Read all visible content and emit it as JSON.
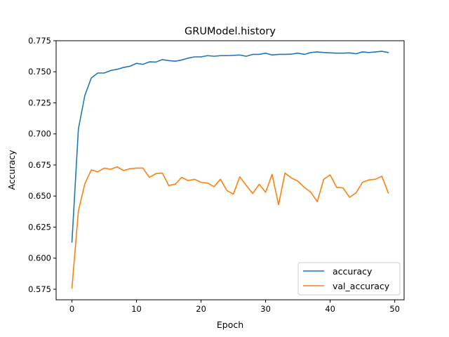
{
  "chart_data": {
    "type": "line",
    "title": "GRUModel.history",
    "xlabel": "Epoch",
    "ylabel": "Accuracy",
    "xlim": [
      -2.45,
      51.45
    ],
    "ylim": [
      0.5665,
      0.775
    ],
    "xticks": [
      0,
      10,
      20,
      30,
      40,
      50
    ],
    "xtick_labels": [
      "0",
      "10",
      "20",
      "30",
      "40",
      "50"
    ],
    "yticks": [
      0.575,
      0.6,
      0.625,
      0.65,
      0.675,
      0.7,
      0.725,
      0.75,
      0.775
    ],
    "ytick_labels": [
      "0.575",
      "0.600",
      "0.625",
      "0.650",
      "0.675",
      "0.700",
      "0.725",
      "0.750",
      "0.775"
    ],
    "grid": false,
    "legend_position": "lower right",
    "x": [
      0,
      1,
      2,
      3,
      4,
      5,
      6,
      7,
      8,
      9,
      10,
      11,
      12,
      13,
      14,
      15,
      16,
      17,
      18,
      19,
      20,
      21,
      22,
      23,
      24,
      25,
      26,
      27,
      28,
      29,
      30,
      31,
      32,
      33,
      34,
      35,
      36,
      37,
      38,
      39,
      40,
      41,
      42,
      43,
      44,
      45,
      46,
      47,
      48,
      49
    ],
    "series": [
      {
        "name": "accuracy",
        "color": "#1f77b4",
        "values": [
          0.613,
          0.704,
          0.731,
          0.745,
          0.749,
          0.749,
          0.751,
          0.752,
          0.7535,
          0.7545,
          0.7568,
          0.756,
          0.758,
          0.7578,
          0.7598,
          0.759,
          0.7585,
          0.7595,
          0.761,
          0.762,
          0.762,
          0.763,
          0.7625,
          0.763,
          0.763,
          0.7632,
          0.7635,
          0.7625,
          0.764,
          0.764,
          0.765,
          0.7635,
          0.764,
          0.764,
          0.7642,
          0.765,
          0.764,
          0.7655,
          0.766,
          0.7655,
          0.7652,
          0.765,
          0.765,
          0.7652,
          0.7645,
          0.766,
          0.7655,
          0.766,
          0.7665,
          0.7655
        ]
      },
      {
        "name": "val_accuracy",
        "color": "#ff7f0e",
        "values": [
          0.576,
          0.638,
          0.66,
          0.671,
          0.6695,
          0.6725,
          0.6715,
          0.6735,
          0.6705,
          0.672,
          0.6725,
          0.6725,
          0.665,
          0.668,
          0.6685,
          0.6585,
          0.6595,
          0.665,
          0.6625,
          0.6635,
          0.661,
          0.6605,
          0.6575,
          0.6635,
          0.6545,
          0.6515,
          0.6655,
          0.6585,
          0.652,
          0.6595,
          0.653,
          0.6675,
          0.643,
          0.6685,
          0.6645,
          0.662,
          0.657,
          0.653,
          0.6455,
          0.6635,
          0.667,
          0.657,
          0.6565,
          0.649,
          0.6525,
          0.661,
          0.663,
          0.6635,
          0.666,
          0.6525
        ]
      }
    ]
  }
}
